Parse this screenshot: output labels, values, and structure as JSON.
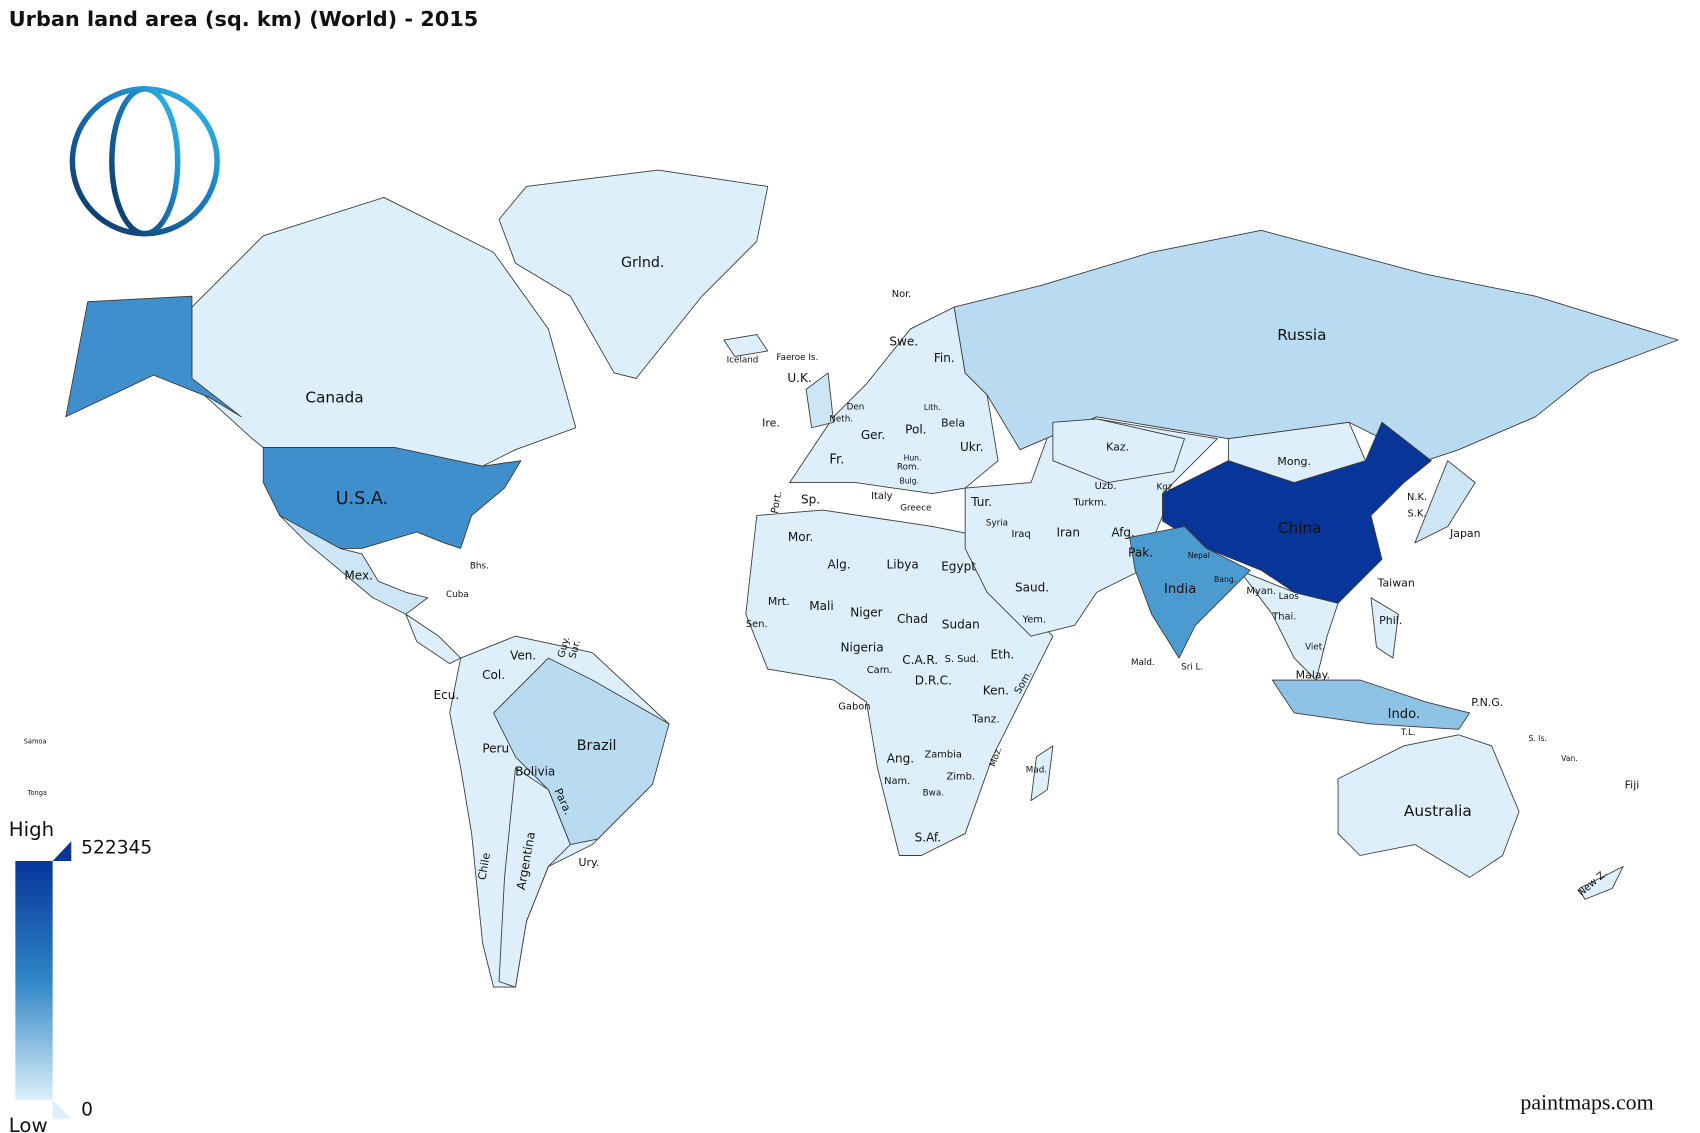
{
  "title": "Urban land area (sq. km) (World) - 2015",
  "base_color": "#ddeffa",
  "countries": [
    {
      "name": "Canada",
      "color": "#ddeffa"
    },
    {
      "name": "U.S.A.",
      "color": "#3f8fcc"
    },
    {
      "name": "Grlnd.",
      "color": "#ddeffa"
    },
    {
      "name": "Mex.",
      "color": "#cde6f6"
    },
    {
      "name": "Brazil",
      "color": "#b9dbf1"
    },
    {
      "name": "Russia",
      "color": "#b9dbf1"
    },
    {
      "name": "China",
      "color": "#07359a"
    },
    {
      "name": "India",
      "color": "#4b9bd0"
    },
    {
      "name": "Australia",
      "color": "#ddeffa"
    },
    {
      "name": "Indo.",
      "color": "#8fc3e5"
    },
    {
      "name": "Argentina",
      "color": "#ddeffa"
    },
    {
      "name": "Kaz.",
      "color": "#ddeffa"
    },
    {
      "name": "Mong.",
      "color": "#ddeffa"
    },
    {
      "name": "Japan",
      "color": "#cde6f6"
    },
    {
      "name": "Iceland",
      "color": "#ddeffa"
    },
    {
      "name": "U.K.",
      "color": "#cde6f6"
    },
    {
      "name": "New Z.",
      "color": "#ddeffa"
    },
    {
      "name": "Mad.",
      "color": "#ddeffa"
    }
  ],
  "labels": [
    "Nor.",
    "Faeroe Is.",
    "Swe.",
    "Fin.",
    "Ire.",
    "Den",
    "Neth.",
    "Fr.",
    "Ger.",
    "Pol.",
    "Bela",
    "Ukr.",
    "Sp.",
    "Port.",
    "Italy",
    "Tur.",
    "Rom.",
    "Greece",
    "Iran",
    "Afg.",
    "Pak.",
    "Uzb.",
    "Turkm.",
    "Mor.",
    "Alg.",
    "Libya",
    "Egypt",
    "Mrt.",
    "Mali",
    "Niger",
    "Chad",
    "Sudan",
    "Saud.",
    "Iraq",
    "Syria",
    "Yem.",
    "Eth.",
    "Som.",
    "Nigeria",
    "C.A.R.",
    "S. Sud.",
    "D.R.C.",
    "Ken.",
    "Tanz.",
    "Ang.",
    "Zambia",
    "Zimb.",
    "Nam.",
    "Bwa.",
    "S.Af.",
    "Moz.",
    "Gabon",
    "Cam.",
    "Sen.",
    "Col.",
    "Ven.",
    "Ecu.",
    "Peru",
    "Bolivia",
    "Para.",
    "Chile",
    "Ury.",
    "Guy.",
    "Sur.",
    "Cuba",
    "Bhs.",
    "Myan.",
    "Thai.",
    "Viet.",
    "Laos",
    "Phil.",
    "Malay.",
    "Taiwan",
    "N.K.",
    "S.K.",
    "P.N.G.",
    "Sri L.",
    "Mald.",
    "Samoa",
    "Tonga",
    "Fiji",
    "Van.",
    "S. Is.",
    "T.L.",
    "Nepal",
    "Bang.",
    "Kgz.",
    "Lith.",
    "Hun.",
    "Bulg."
  ],
  "legend": {
    "high": "High",
    "low": "Low",
    "max": 522345,
    "min": 0,
    "low_color": "#ddeffa",
    "high_color": "#07359a"
  },
  "credit": "paintmaps.com"
}
